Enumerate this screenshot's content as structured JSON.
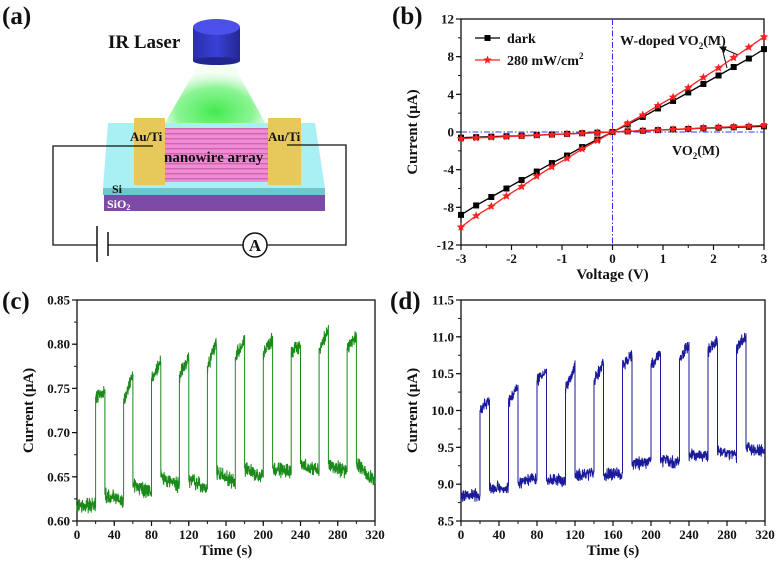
{
  "panel_a": {
    "label": "(a)",
    "laser_label": "IR Laser",
    "electrode_left": "Au/Ti",
    "electrode_right": "Au/Ti",
    "nanowire_label": "nanowire array",
    "si_label": "Si",
    "sio2_label": {
      "base": "SiO",
      "sub": "2"
    },
    "ammeter_label": "A",
    "colors": {
      "laser": "#2a2fc0",
      "beam": "#2ee83a",
      "substrate_top": "#a8f0f4",
      "si": "#6fc6cc",
      "sio2": "#7d4aa8",
      "electrode": "#e6c95a",
      "nanowire": "#f07ad0"
    }
  },
  "chart_data": [
    {
      "panel_label": "(b)",
      "type": "line",
      "xlabel": "Voltage (V)",
      "ylabel": "Current (μA)",
      "xlim": [
        -3,
        3
      ],
      "ylim": [
        -12,
        12
      ],
      "xticks": [
        "-3",
        "-2",
        "-1",
        "0",
        "1",
        "2",
        "3"
      ],
      "yticks": [
        "-12",
        "-8",
        "-4",
        "0",
        "4",
        "8",
        "12"
      ],
      "grid": false,
      "legend_position": "top-left",
      "legend": [
        {
          "name": "dark",
          "color": "#000000",
          "marker": "square"
        },
        {
          "name_base": "280 mW/cm",
          "name_sup": "2",
          "color": "#ff2020",
          "marker": "star"
        }
      ],
      "annotations": {
        "w_doped": {
          "base": "W-doped VO",
          "sub": "2",
          "suffix": "(M)"
        },
        "vo2": {
          "base": "VO",
          "sub": "2",
          "suffix": "(M)"
        }
      },
      "x": [
        -3,
        -2.7,
        -2.4,
        -2.1,
        -1.8,
        -1.5,
        -1.2,
        -0.9,
        -0.6,
        -0.3,
        0,
        0.3,
        0.6,
        0.9,
        1.2,
        1.5,
        1.8,
        2.1,
        2.4,
        2.7,
        3
      ],
      "series": [
        {
          "sample": "W-doped VO2(M)",
          "condition": "dark",
          "color": "#000000",
          "marker": "square",
          "values": [
            -8.8,
            -7.8,
            -6.9,
            -6.0,
            -5.1,
            -4.2,
            -3.3,
            -2.5,
            -1.6,
            -0.8,
            0,
            0.8,
            1.6,
            2.5,
            3.3,
            4.2,
            5.1,
            6.0,
            6.9,
            7.8,
            8.8
          ]
        },
        {
          "sample": "W-doped VO2(M)",
          "condition": "280 mW/cm2",
          "color": "#ff2020",
          "marker": "star",
          "values": [
            -10.1,
            -8.9,
            -7.9,
            -6.8,
            -5.8,
            -4.7,
            -3.7,
            -2.8,
            -1.8,
            -0.9,
            0,
            0.9,
            1.8,
            2.8,
            3.7,
            4.7,
            5.8,
            6.8,
            7.9,
            9.0,
            10.1
          ]
        },
        {
          "sample": "VO2(M)",
          "condition": "dark",
          "color": "#000000",
          "marker": "square",
          "values": [
            -0.6,
            -0.55,
            -0.5,
            -0.45,
            -0.4,
            -0.33,
            -0.27,
            -0.2,
            -0.13,
            -0.07,
            0,
            0.07,
            0.13,
            0.2,
            0.27,
            0.33,
            0.4,
            0.45,
            0.5,
            0.55,
            0.6
          ]
        },
        {
          "sample": "VO2(M)",
          "condition": "280 mW/cm2",
          "color": "#ff2020",
          "marker": "star",
          "values": [
            -0.7,
            -0.63,
            -0.56,
            -0.49,
            -0.42,
            -0.35,
            -0.28,
            -0.21,
            -0.14,
            -0.07,
            0,
            0.07,
            0.14,
            0.21,
            0.28,
            0.35,
            0.42,
            0.49,
            0.56,
            0.63,
            0.7
          ]
        }
      ],
      "reference_lines": {
        "x": 0,
        "y": 0,
        "color": "#3333ff",
        "style": "dash-dot"
      }
    },
    {
      "panel_label": "(c)",
      "type": "line",
      "xlabel": "Time (s)",
      "ylabel": "Current (μA)",
      "xlim": [
        0,
        320
      ],
      "ylim": [
        0.6,
        0.85
      ],
      "xticks": [
        "0",
        "40",
        "80",
        "120",
        "160",
        "200",
        "240",
        "280",
        "320"
      ],
      "yticks": [
        "0.60",
        "0.65",
        "0.70",
        "0.75",
        "0.80",
        "0.85"
      ],
      "grid": false,
      "color": "#1a8a1a",
      "points": [
        [
          0,
          0.618
        ],
        [
          20,
          0.618
        ],
        [
          20,
          0.74
        ],
        [
          30,
          0.745
        ],
        [
          30,
          0.63
        ],
        [
          50,
          0.622
        ],
        [
          50,
          0.735
        ],
        [
          60,
          0.765
        ],
        [
          60,
          0.64
        ],
        [
          80,
          0.632
        ],
        [
          80,
          0.76
        ],
        [
          90,
          0.78
        ],
        [
          90,
          0.65
        ],
        [
          110,
          0.64
        ],
        [
          110,
          0.765
        ],
        [
          120,
          0.785
        ],
        [
          120,
          0.647
        ],
        [
          140,
          0.636
        ],
        [
          140,
          0.775
        ],
        [
          150,
          0.8
        ],
        [
          150,
          0.655
        ],
        [
          170,
          0.643
        ],
        [
          170,
          0.785
        ],
        [
          180,
          0.805
        ],
        [
          180,
          0.66
        ],
        [
          200,
          0.65
        ],
        [
          200,
          0.79
        ],
        [
          210,
          0.805
        ],
        [
          210,
          0.66
        ],
        [
          230,
          0.655
        ],
        [
          230,
          0.79
        ],
        [
          240,
          0.8
        ],
        [
          240,
          0.665
        ],
        [
          260,
          0.655
        ],
        [
          260,
          0.795
        ],
        [
          270,
          0.815
        ],
        [
          270,
          0.665
        ],
        [
          290,
          0.655
        ],
        [
          290,
          0.795
        ],
        [
          300,
          0.81
        ],
        [
          300,
          0.665
        ],
        [
          320,
          0.645
        ]
      ]
    },
    {
      "panel_label": "(d)",
      "type": "line",
      "xlabel": "Time (s)",
      "ylabel": "Current (μA)",
      "xlim": [
        0,
        320
      ],
      "ylim": [
        8.5,
        11.5
      ],
      "xticks": [
        "0",
        "40",
        "80",
        "120",
        "160",
        "200",
        "240",
        "280",
        "320"
      ],
      "yticks": [
        "8.5",
        "9.0",
        "9.5",
        "10.0",
        "10.5",
        "11.0",
        "11.5"
      ],
      "grid": false,
      "color": "#1a1a9a",
      "points": [
        [
          0,
          8.85
        ],
        [
          20,
          8.85
        ],
        [
          20,
          10.0
        ],
        [
          30,
          10.15
        ],
        [
          30,
          8.95
        ],
        [
          50,
          8.95
        ],
        [
          50,
          10.1
        ],
        [
          60,
          10.35
        ],
        [
          60,
          9.02
        ],
        [
          80,
          9.1
        ],
        [
          80,
          10.4
        ],
        [
          90,
          10.55
        ],
        [
          90,
          9.05
        ],
        [
          110,
          9.05
        ],
        [
          110,
          10.3
        ],
        [
          120,
          10.6
        ],
        [
          120,
          9.12
        ],
        [
          140,
          9.15
        ],
        [
          140,
          10.4
        ],
        [
          150,
          10.65
        ],
        [
          150,
          9.12
        ],
        [
          170,
          9.15
        ],
        [
          170,
          10.6
        ],
        [
          180,
          10.75
        ],
        [
          180,
          9.27
        ],
        [
          200,
          9.3
        ],
        [
          200,
          10.6
        ],
        [
          210,
          10.8
        ],
        [
          210,
          9.32
        ],
        [
          230,
          9.3
        ],
        [
          230,
          10.7
        ],
        [
          240,
          10.9
        ],
        [
          240,
          9.4
        ],
        [
          260,
          9.38
        ],
        [
          260,
          10.8
        ],
        [
          270,
          10.95
        ],
        [
          270,
          9.45
        ],
        [
          290,
          9.38
        ],
        [
          290,
          10.85
        ],
        [
          300,
          11.0
        ],
        [
          300,
          9.5
        ],
        [
          320,
          9.45
        ]
      ]
    }
  ]
}
